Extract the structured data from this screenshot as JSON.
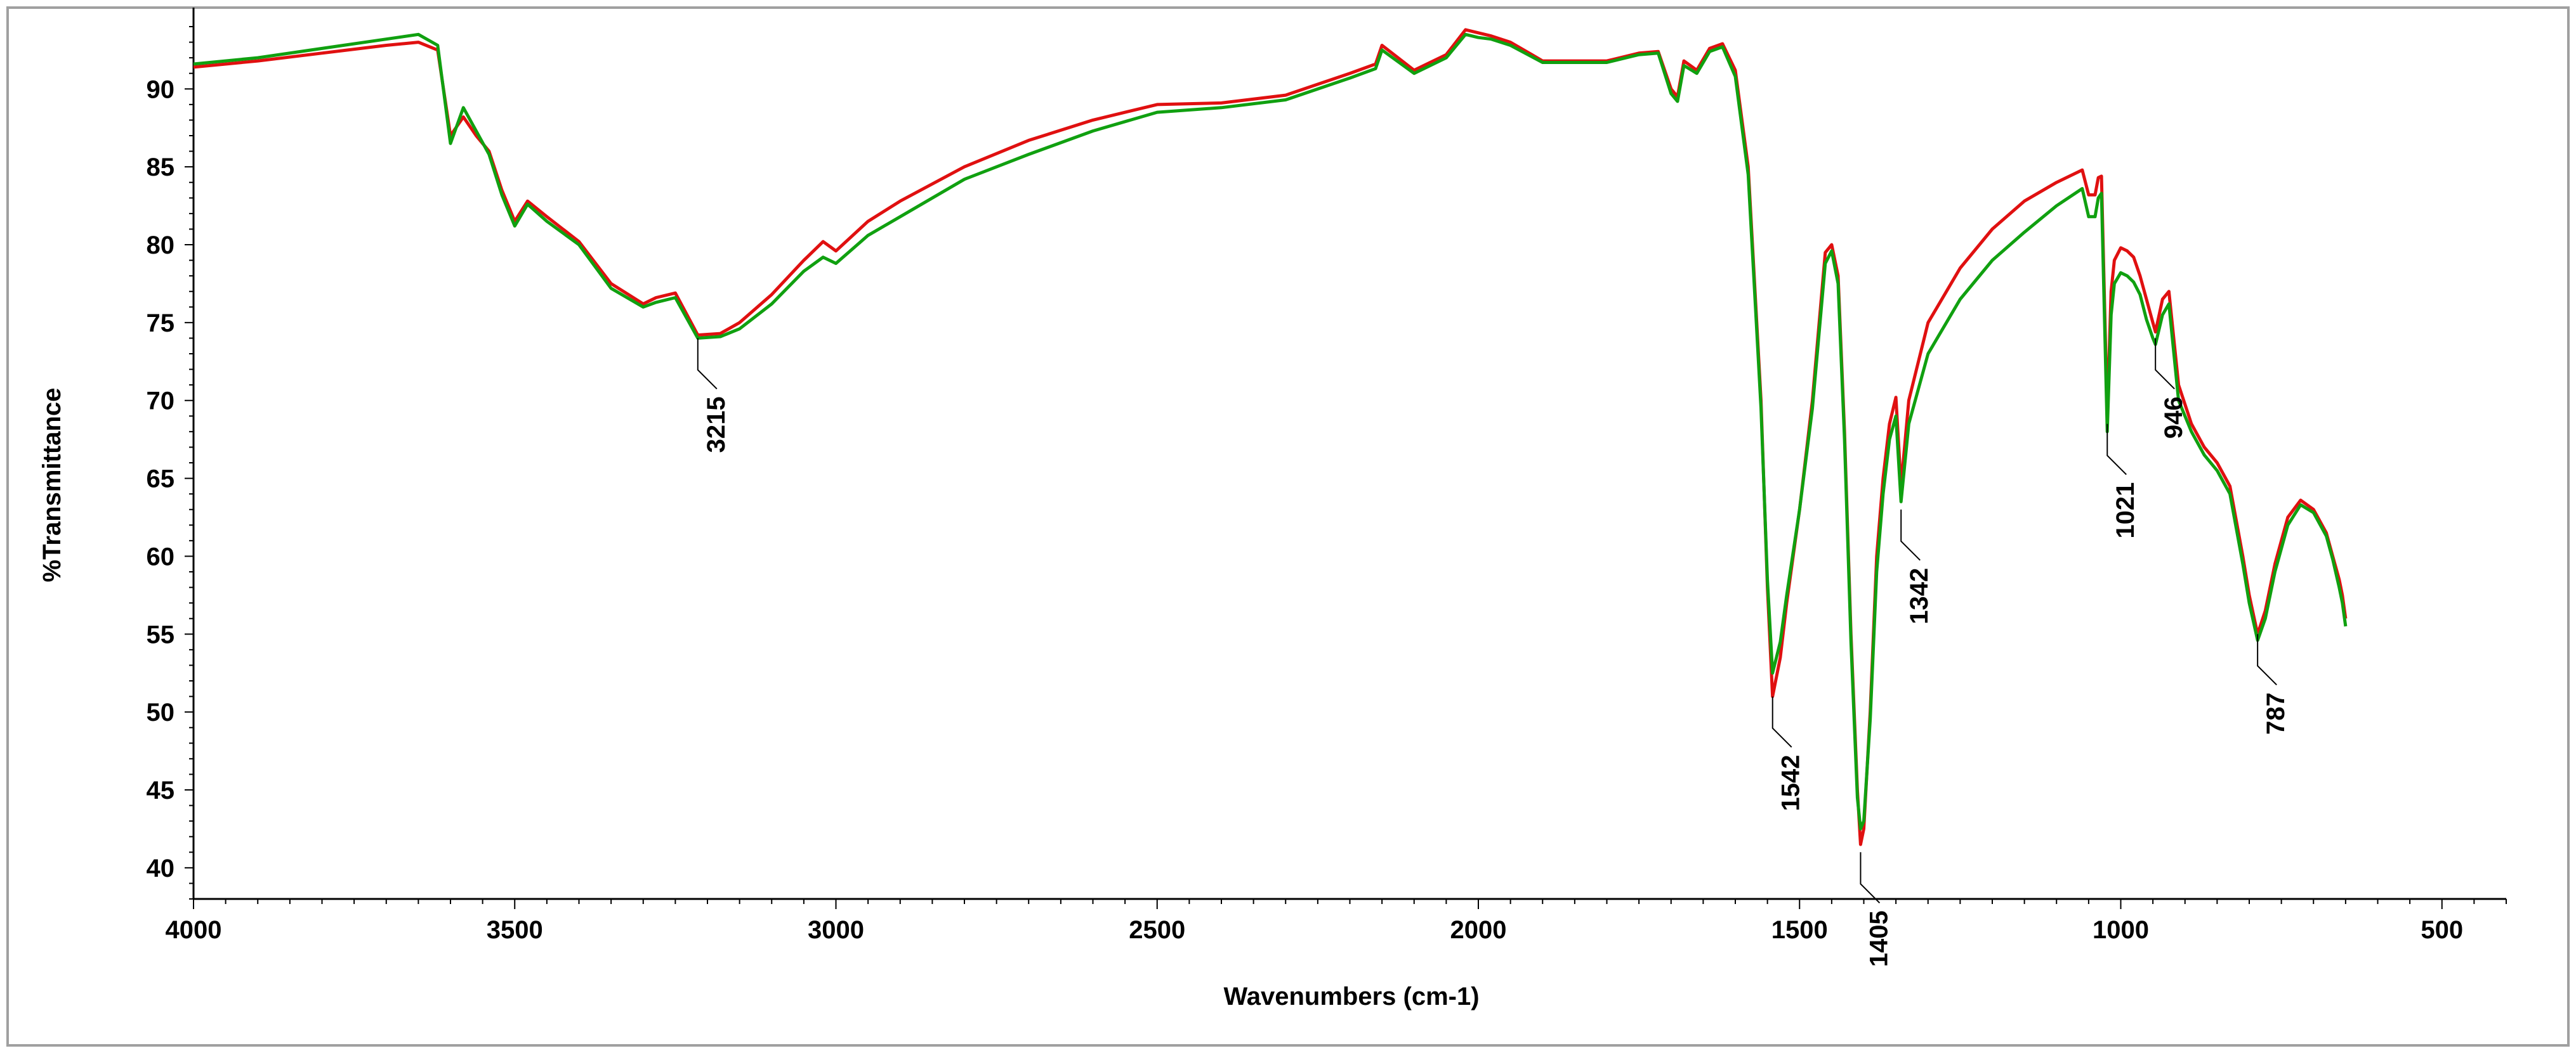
{
  "chart_data": {
    "type": "line",
    "title": "",
    "xlabel": "Wavenumbers (cm-1)",
    "ylabel": "%Transmittance",
    "xlim": [
      4000,
      400
    ],
    "ylim": [
      38,
      94
    ],
    "x_reversed": true,
    "x_ticks": [
      4000,
      3500,
      3000,
      2500,
      2000,
      1500,
      1000,
      500
    ],
    "y_ticks": [
      40,
      45,
      50,
      55,
      60,
      65,
      70,
      75,
      80,
      85,
      90
    ],
    "grid": false,
    "legend": "none",
    "series": [
      {
        "color": "#e01010",
        "x": [
          4000,
          3900,
          3800,
          3700,
          3650,
          3620,
          3600,
          3580,
          3560,
          3540,
          3520,
          3500,
          3480,
          3450,
          3400,
          3350,
          3300,
          3280,
          3250,
          3215,
          3180,
          3150,
          3100,
          3050,
          3020,
          3000,
          2950,
          2900,
          2800,
          2700,
          2600,
          2500,
          2400,
          2300,
          2200,
          2160,
          2150,
          2100,
          2050,
          2020,
          2000,
          1980,
          1950,
          1900,
          1800,
          1750,
          1720,
          1700,
          1690,
          1680,
          1660,
          1640,
          1620,
          1600,
          1580,
          1560,
          1550,
          1542,
          1530,
          1520,
          1500,
          1480,
          1460,
          1450,
          1440,
          1430,
          1420,
          1410,
          1405,
          1400,
          1390,
          1380,
          1370,
          1360,
          1350,
          1342,
          1330,
          1300,
          1250,
          1200,
          1150,
          1100,
          1060,
          1050,
          1040,
          1035,
          1030,
          1021,
          1015,
          1010,
          1000,
          990,
          980,
          970,
          960,
          950,
          946,
          935,
          925,
          910,
          890,
          870,
          850,
          830,
          810,
          800,
          787,
          775,
          760,
          740,
          720,
          700,
          680,
          670,
          660,
          655,
          650
        ],
        "y": [
          91.4,
          91.8,
          92.3,
          92.8,
          93.0,
          92.5,
          87.0,
          88.2,
          87.0,
          86.0,
          83.5,
          81.5,
          82.8,
          81.8,
          80.2,
          77.5,
          76.2,
          76.6,
          76.9,
          74.2,
          74.3,
          75.0,
          76.8,
          79.0,
          80.2,
          79.6,
          81.5,
          82.8,
          85.0,
          86.7,
          88.0,
          89.0,
          89.1,
          89.6,
          91.0,
          91.6,
          92.8,
          91.2,
          92.2,
          93.8,
          93.6,
          93.4,
          93.0,
          91.8,
          91.8,
          92.3,
          92.4,
          90.0,
          89.5,
          91.8,
          91.2,
          92.6,
          92.9,
          91.2,
          85.0,
          70.0,
          58.0,
          51.0,
          53.5,
          57.0,
          63.0,
          70.0,
          79.5,
          80.0,
          78.0,
          68.0,
          55.0,
          45.0,
          41.5,
          42.5,
          50.0,
          60.0,
          65.0,
          68.5,
          70.2,
          64.5,
          70.0,
          75.0,
          78.5,
          81.0,
          82.8,
          84.0,
          84.8,
          83.2,
          83.2,
          84.3,
          84.4,
          69.0,
          77.0,
          79.0,
          79.8,
          79.6,
          79.2,
          78.0,
          76.5,
          75.0,
          74.4,
          76.5,
          77.0,
          71.0,
          68.5,
          67.0,
          66.0,
          64.5,
          60.0,
          57.5,
          55.0,
          56.5,
          59.5,
          62.5,
          63.6,
          63.0,
          61.5,
          60.0,
          58.5,
          57.5,
          56.0
        ]
      },
      {
        "color": "#10a010",
        "x": [
          4000,
          3900,
          3800,
          3700,
          3650,
          3620,
          3600,
          3580,
          3560,
          3540,
          3520,
          3500,
          3480,
          3450,
          3400,
          3350,
          3300,
          3280,
          3250,
          3215,
          3180,
          3150,
          3100,
          3050,
          3020,
          3000,
          2950,
          2900,
          2800,
          2700,
          2600,
          2500,
          2400,
          2300,
          2200,
          2160,
          2150,
          2100,
          2050,
          2020,
          2000,
          1980,
          1950,
          1900,
          1800,
          1750,
          1720,
          1700,
          1690,
          1680,
          1660,
          1640,
          1620,
          1600,
          1580,
          1560,
          1550,
          1542,
          1530,
          1520,
          1500,
          1480,
          1460,
          1450,
          1440,
          1430,
          1420,
          1410,
          1405,
          1400,
          1390,
          1380,
          1370,
          1360,
          1350,
          1342,
          1330,
          1300,
          1250,
          1200,
          1150,
          1100,
          1060,
          1050,
          1040,
          1035,
          1030,
          1021,
          1015,
          1010,
          1000,
          990,
          980,
          970,
          960,
          950,
          946,
          935,
          925,
          910,
          890,
          870,
          850,
          830,
          810,
          800,
          787,
          775,
          760,
          740,
          720,
          700,
          680,
          670,
          660,
          655,
          650
        ],
        "y": [
          91.6,
          92.0,
          92.6,
          93.2,
          93.5,
          92.8,
          86.5,
          88.8,
          87.3,
          85.8,
          83.2,
          81.2,
          82.6,
          81.5,
          80.0,
          77.2,
          76.0,
          76.3,
          76.6,
          74.0,
          74.1,
          74.6,
          76.2,
          78.3,
          79.2,
          78.8,
          80.6,
          81.8,
          84.2,
          85.8,
          87.3,
          88.5,
          88.8,
          89.3,
          90.7,
          91.3,
          92.5,
          91.0,
          92.0,
          93.5,
          93.3,
          93.2,
          92.8,
          91.7,
          91.7,
          92.2,
          92.3,
          89.7,
          89.2,
          91.5,
          91.0,
          92.4,
          92.7,
          90.8,
          84.5,
          69.5,
          58.5,
          52.5,
          54.5,
          57.5,
          63.0,
          69.5,
          78.8,
          79.6,
          77.5,
          67.5,
          54.5,
          44.5,
          42.5,
          43.0,
          49.5,
          59.0,
          64.0,
          67.5,
          69.0,
          63.5,
          68.5,
          73.0,
          76.5,
          79.0,
          80.8,
          82.5,
          83.6,
          81.8,
          81.8,
          83.0,
          83.3,
          68.0,
          75.5,
          77.5,
          78.2,
          78.0,
          77.6,
          76.8,
          75.2,
          74.0,
          73.6,
          75.5,
          76.2,
          70.0,
          68.0,
          66.5,
          65.5,
          64.0,
          59.5,
          57.0,
          54.6,
          56.0,
          59.0,
          62.0,
          63.3,
          62.8,
          61.3,
          59.8,
          58.0,
          57.0,
          55.5
        ]
      }
    ],
    "annotations": [
      {
        "label": "3215",
        "x": 3215,
        "y": 74.0
      },
      {
        "label": "1542",
        "x": 1542,
        "y": 51.0
      },
      {
        "label": "1405",
        "x": 1405,
        "y": 41.0
      },
      {
        "label": "1342",
        "x": 1342,
        "y": 63.0
      },
      {
        "label": "1021",
        "x": 1021,
        "y": 68.5
      },
      {
        "label": "946",
        "x": 946,
        "y": 74.0
      },
      {
        "label": "787",
        "x": 787,
        "y": 55.0
      }
    ]
  }
}
